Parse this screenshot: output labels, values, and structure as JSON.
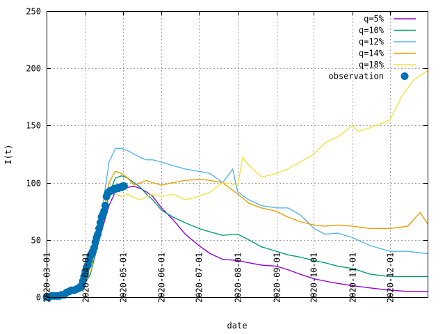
{
  "chart_data": {
    "type": "line",
    "xlabel": "date",
    "ylabel": "I(t)",
    "ylim": [
      0,
      250
    ],
    "yticks": [
      0,
      50,
      100,
      150,
      200,
      250
    ],
    "xlim": [
      "2020-03-01",
      "2020-12-31"
    ],
    "xticks": [
      "2020-03-01",
      "2020-04-01",
      "2020-05-01",
      "2020-06-01",
      "2020-07-01",
      "2020-08-01",
      "2020-09-01",
      "2020-10-01",
      "2020-11-01",
      "2020-12-01"
    ],
    "grid": true,
    "legend_position": "top-right",
    "series": [
      {
        "name": "q=5%",
        "color": "#9400d3",
        "x": [
          "2020-03-01",
          "2020-03-10",
          "2020-03-20",
          "2020-03-28",
          "2020-04-05",
          "2020-04-12",
          "2020-04-20",
          "2020-04-25",
          "2020-04-30",
          "2020-05-05",
          "2020-05-10",
          "2020-05-15",
          "2020-05-20",
          "2020-05-25",
          "2020-06-01",
          "2020-06-10",
          "2020-06-20",
          "2020-07-01",
          "2020-07-10",
          "2020-07-20",
          "2020-08-01",
          "2020-08-10",
          "2020-08-20",
          "2020-09-01",
          "2020-09-10",
          "2020-09-20",
          "2020-10-01",
          "2020-10-10",
          "2020-10-20",
          "2020-11-01",
          "2020-11-15",
          "2020-12-01",
          "2020-12-15",
          "2020-12-31"
        ],
        "values": [
          0,
          1,
          3,
          5,
          20,
          50,
          80,
          92,
          95,
          96,
          97,
          95,
          92,
          88,
          78,
          68,
          55,
          45,
          38,
          33,
          32,
          30,
          28,
          27,
          24,
          20,
          16,
          14,
          12,
          10,
          8,
          6,
          5,
          5
        ]
      },
      {
        "name": "q=10%",
        "color": "#009e73",
        "x": [
          "2020-03-01",
          "2020-03-10",
          "2020-03-20",
          "2020-03-28",
          "2020-04-05",
          "2020-04-12",
          "2020-04-20",
          "2020-04-25",
          "2020-04-30",
          "2020-05-05",
          "2020-05-10",
          "2020-05-15",
          "2020-05-20",
          "2020-05-25",
          "2020-06-01",
          "2020-06-10",
          "2020-06-20",
          "2020-07-01",
          "2020-07-10",
          "2020-07-20",
          "2020-08-01",
          "2020-08-10",
          "2020-08-20",
          "2020-09-01",
          "2020-09-10",
          "2020-09-20",
          "2020-10-01",
          "2020-10-10",
          "2020-10-20",
          "2020-11-01",
          "2020-11-15",
          "2020-12-01",
          "2020-12-15",
          "2020-12-31"
        ],
        "values": [
          0,
          1,
          3,
          5,
          20,
          52,
          90,
          104,
          106,
          104,
          100,
          96,
          90,
          85,
          76,
          70,
          65,
          60,
          57,
          54,
          55,
          50,
          44,
          40,
          37,
          35,
          32,
          30,
          27,
          25,
          20,
          18,
          18,
          18
        ]
      },
      {
        "name": "q=12%",
        "color": "#56b4e9",
        "x": [
          "2020-03-01",
          "2020-03-10",
          "2020-03-20",
          "2020-03-28",
          "2020-04-05",
          "2020-04-12",
          "2020-04-20",
          "2020-04-25",
          "2020-04-30",
          "2020-05-05",
          "2020-05-10",
          "2020-05-15",
          "2020-05-20",
          "2020-05-25",
          "2020-06-01",
          "2020-06-10",
          "2020-06-20",
          "2020-07-01",
          "2020-07-10",
          "2020-07-20",
          "2020-07-28",
          "2020-08-01",
          "2020-08-10",
          "2020-08-20",
          "2020-09-01",
          "2020-09-10",
          "2020-09-20",
          "2020-10-01",
          "2020-10-10",
          "2020-10-20",
          "2020-11-01",
          "2020-11-15",
          "2020-12-01",
          "2020-12-15",
          "2020-12-31"
        ],
        "values": [
          0,
          1,
          3,
          5,
          22,
          58,
          118,
          130,
          130,
          128,
          125,
          122,
          120,
          120,
          118,
          115,
          112,
          110,
          108,
          100,
          112,
          92,
          85,
          80,
          78,
          78,
          72,
          60,
          55,
          56,
          52,
          45,
          40,
          40,
          38
        ]
      },
      {
        "name": "q=14%",
        "color": "#e69f00",
        "x": [
          "2020-03-01",
          "2020-03-10",
          "2020-03-20",
          "2020-03-28",
          "2020-04-05",
          "2020-04-12",
          "2020-04-20",
          "2020-04-25",
          "2020-04-30",
          "2020-05-05",
          "2020-05-10",
          "2020-05-15",
          "2020-05-20",
          "2020-05-25",
          "2020-06-01",
          "2020-06-10",
          "2020-06-20",
          "2020-07-01",
          "2020-07-10",
          "2020-07-20",
          "2020-08-01",
          "2020-08-10",
          "2020-08-20",
          "2020-09-01",
          "2020-09-10",
          "2020-09-20",
          "2020-10-01",
          "2020-10-10",
          "2020-10-20",
          "2020-11-01",
          "2020-11-15",
          "2020-12-01",
          "2020-12-15",
          "2020-12-25",
          "2020-12-31"
        ],
        "values": [
          0,
          1,
          3,
          5,
          22,
          56,
          100,
          110,
          108,
          104,
          98,
          100,
          102,
          100,
          98,
          100,
          102,
          103,
          102,
          100,
          90,
          82,
          78,
          75,
          70,
          66,
          63,
          62,
          63,
          62,
          60,
          60,
          62,
          74,
          64
        ]
      },
      {
        "name": "q=18%",
        "color": "#f0e442",
        "x": [
          "2020-03-01",
          "2020-03-10",
          "2020-03-20",
          "2020-03-28",
          "2020-04-05",
          "2020-04-12",
          "2020-04-20",
          "2020-04-25",
          "2020-04-30",
          "2020-05-05",
          "2020-05-10",
          "2020-05-15",
          "2020-05-20",
          "2020-05-25",
          "2020-06-01",
          "2020-06-10",
          "2020-06-20",
          "2020-07-01",
          "2020-07-10",
          "2020-07-20",
          "2020-08-01",
          "2020-08-05",
          "2020-08-10",
          "2020-08-20",
          "2020-09-01",
          "2020-09-10",
          "2020-09-20",
          "2020-10-01",
          "2020-10-10",
          "2020-10-20",
          "2020-11-01",
          "2020-11-05",
          "2020-11-15",
          "2020-12-01",
          "2020-12-10",
          "2020-12-20",
          "2020-12-31"
        ],
        "values": [
          0,
          1,
          3,
          5,
          22,
          58,
          95,
          90,
          88,
          90,
          87,
          85,
          88,
          90,
          88,
          90,
          85,
          88,
          92,
          100,
          98,
          122,
          115,
          105,
          108,
          112,
          118,
          125,
          135,
          140,
          150,
          145,
          148,
          155,
          175,
          190,
          198
        ]
      }
    ],
    "observation": {
      "name": "observation",
      "color": "#0072b2",
      "x": [
        "2020-03-01",
        "2020-03-03",
        "2020-03-05",
        "2020-03-07",
        "2020-03-09",
        "2020-03-11",
        "2020-03-13",
        "2020-03-15",
        "2020-03-17",
        "2020-03-19",
        "2020-03-21",
        "2020-03-23",
        "2020-03-25",
        "2020-03-27",
        "2020-03-28",
        "2020-03-29",
        "2020-03-30",
        "2020-03-31",
        "2020-04-01",
        "2020-04-02",
        "2020-04-03",
        "2020-04-04",
        "2020-04-05",
        "2020-04-06",
        "2020-04-07",
        "2020-04-08",
        "2020-04-09",
        "2020-04-10",
        "2020-04-11",
        "2020-04-12",
        "2020-04-13",
        "2020-04-14",
        "2020-04-15",
        "2020-04-16",
        "2020-04-17",
        "2020-04-18",
        "2020-04-19",
        "2020-04-20",
        "2020-04-21",
        "2020-04-22",
        "2020-04-23",
        "2020-04-24",
        "2020-04-25",
        "2020-04-26",
        "2020-04-27",
        "2020-04-28",
        "2020-04-29",
        "2020-04-30",
        "2020-05-01",
        "2020-05-02"
      ],
      "values": [
        0,
        0,
        1,
        1,
        1,
        1,
        2,
        2,
        4,
        5,
        6,
        6,
        7,
        8,
        9,
        10,
        14,
        18,
        22,
        26,
        28,
        32,
        36,
        38,
        40,
        43,
        48,
        52,
        55,
        60,
        65,
        70,
        72,
        75,
        80,
        88,
        91,
        92,
        93,
        93,
        94,
        94,
        95,
        95,
        95,
        96,
        96,
        96,
        97,
        97
      ]
    }
  }
}
